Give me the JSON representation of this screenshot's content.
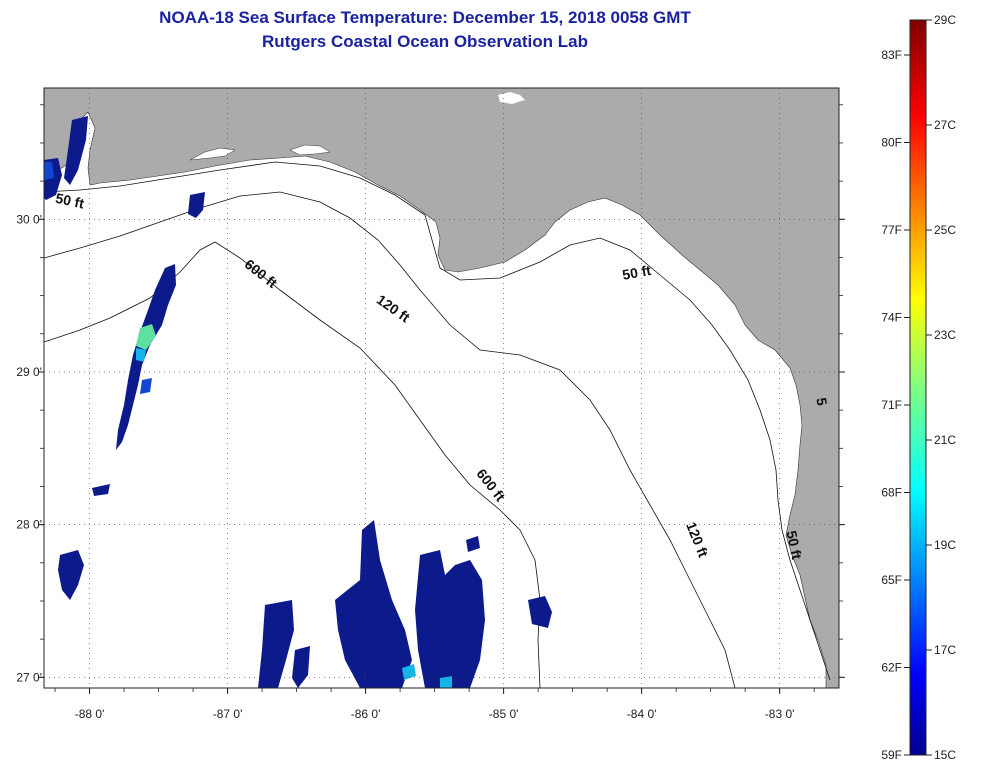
{
  "header": {
    "title": "NOAA-18 Sea Surface Temperature:  December 15, 2018 0058 GMT",
    "subtitle": "Rutgers Coastal Ocean Observation Lab"
  },
  "map": {
    "lon_range": [
      -88.33,
      -82.57
    ],
    "lat_range": [
      26.93,
      30.86
    ],
    "lon_ticks": [
      {
        "value": -88,
        "label": "-88 0'"
      },
      {
        "value": -87,
        "label": "-87 0'"
      },
      {
        "value": -86,
        "label": "-86 0'"
      },
      {
        "value": -85,
        "label": "-85 0'"
      },
      {
        "value": -84,
        "label": "-84 0'"
      },
      {
        "value": -83,
        "label": "-83 0'"
      }
    ],
    "lat_ticks": [
      {
        "value": 30,
        "label": "30 0'"
      },
      {
        "value": 29,
        "label": "29 0'"
      },
      {
        "value": 28,
        "label": "28 0'"
      },
      {
        "value": 27,
        "label": "27 0'"
      }
    ],
    "contour_labels": [
      {
        "text": "50 ft",
        "lon": -88.15,
        "lat": 30.09,
        "angle": 12
      },
      {
        "text": "600 ft",
        "lon": -86.78,
        "lat": 29.62,
        "angle": 38
      },
      {
        "text": "120 ft",
        "lon": -85.82,
        "lat": 29.39,
        "angle": 35
      },
      {
        "text": "50 ft",
        "lon": -84.03,
        "lat": 29.62,
        "angle": -10
      },
      {
        "text": "600 ft",
        "lon": -85.12,
        "lat": 28.24,
        "angle": 52
      },
      {
        "text": "120 ft",
        "lon": -83.63,
        "lat": 27.89,
        "angle": 68
      },
      {
        "text": "50 ft",
        "lon": -82.93,
        "lat": 27.86,
        "angle": 78
      },
      {
        "text": "5",
        "lon": -82.73,
        "lat": 28.8,
        "angle": 80
      }
    ],
    "colors": {
      "land": "#ababab",
      "sst_main": "#0d1a8c",
      "sst_mid": "#1446d6",
      "sst_cyan": "#17b4e8",
      "sst_green": "#5fe0a0"
    }
  },
  "colorbar": {
    "f_labels": [
      {
        "value": 83,
        "label": "83F"
      },
      {
        "value": 80,
        "label": "80F"
      },
      {
        "value": 77,
        "label": "77F"
      },
      {
        "value": 74,
        "label": "74F"
      },
      {
        "value": 71,
        "label": "71F"
      },
      {
        "value": 68,
        "label": "68F"
      },
      {
        "value": 65,
        "label": "65F"
      },
      {
        "value": 62,
        "label": "62F"
      },
      {
        "value": 59,
        "label": "59F"
      }
    ],
    "c_labels": [
      {
        "value": 29,
        "label": "29C"
      },
      {
        "value": 27,
        "label": "27C"
      },
      {
        "value": 25,
        "label": "25C"
      },
      {
        "value": 23,
        "label": "23C"
      },
      {
        "value": 21,
        "label": "21C"
      },
      {
        "value": 19,
        "label": "19C"
      },
      {
        "value": 17,
        "label": "17C"
      },
      {
        "value": 15,
        "label": "15C"
      }
    ],
    "c_range": [
      15,
      29
    ]
  }
}
